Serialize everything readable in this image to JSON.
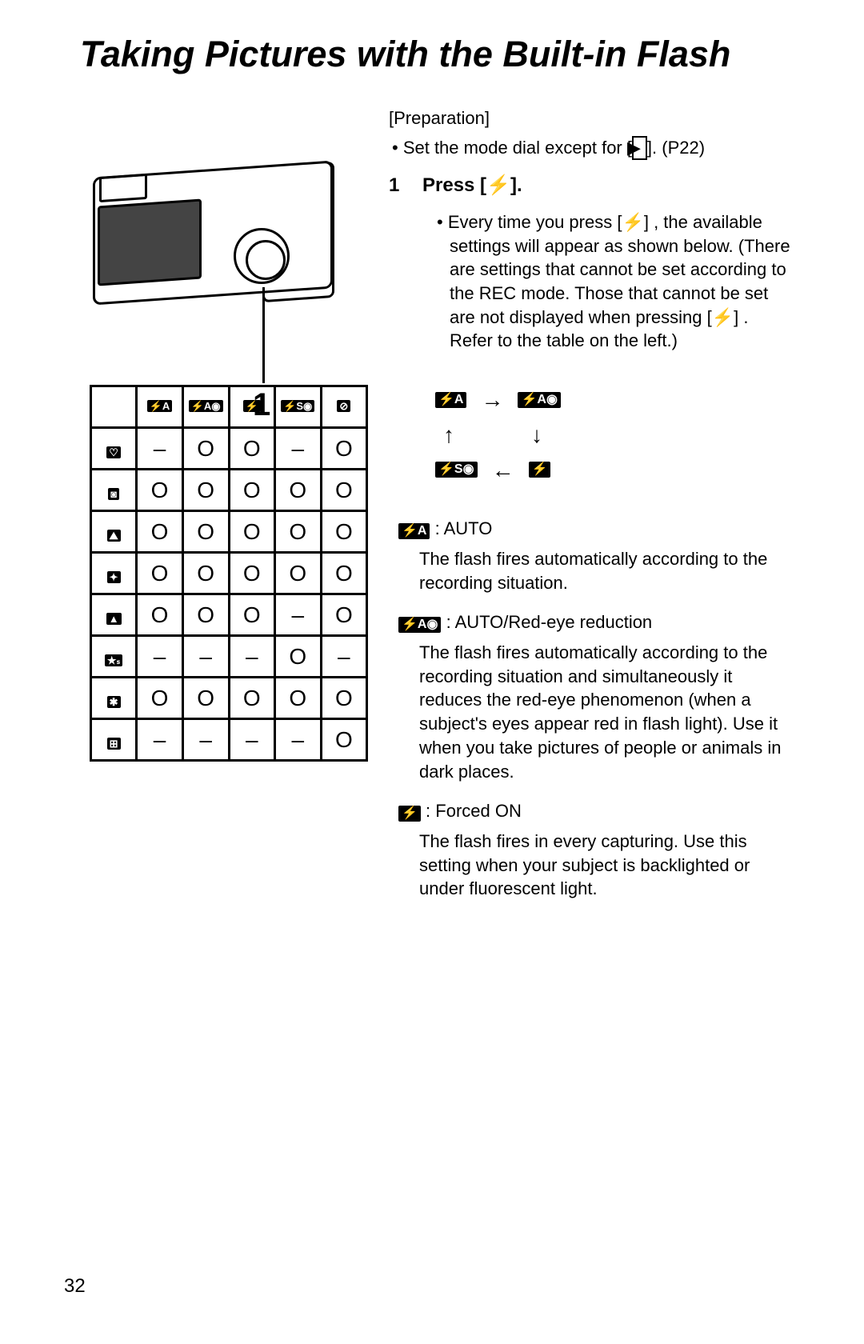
{
  "title": "Taking Pictures with the Built-in Flash",
  "page_number": "32",
  "preparation": {
    "label": "[Preparation]",
    "line_prefix": "• Set the mode dial except for [",
    "playback_glyph": "▶",
    "line_suffix": "]. (P22)"
  },
  "step": {
    "number": "1",
    "press_prefix": "Press [",
    "flash_glyph": "⚡",
    "press_suffix": "].",
    "bullet_prefix": "• Every time you press [",
    "bullet_mid": "] , the available settings will appear as shown below. (There are settings that cannot be set according to the REC mode. Those that cannot be set are not displayed when pressing [",
    "bullet_suffix": "] . Refer to the table on the left.)"
  },
  "table": {
    "col_labels": [
      "⚡A",
      "⚡A◉",
      "⚡",
      "⚡S◉",
      "⊘"
    ],
    "row_labels": [
      "♡",
      "◙",
      "⛰︎",
      "✦",
      "▲",
      "★ₛ",
      "✱",
      "⊞"
    ],
    "cells": [
      [
        "–",
        "O",
        "O",
        "–",
        "O"
      ],
      [
        "O",
        "O",
        "O",
        "O",
        "O"
      ],
      [
        "O",
        "O",
        "O",
        "O",
        "O"
      ],
      [
        "O",
        "O",
        "O",
        "O",
        "O"
      ],
      [
        "O",
        "O",
        "O",
        "–",
        "O"
      ],
      [
        "–",
        "–",
        "–",
        "O",
        "–"
      ],
      [
        "O",
        "O",
        "O",
        "O",
        "O"
      ],
      [
        "–",
        "–",
        "–",
        "–",
        "O"
      ]
    ]
  },
  "cycle": {
    "a": "⚡A",
    "b": "⚡A◉",
    "c": "⚡S◉",
    "d": "⚡"
  },
  "modes": {
    "auto": {
      "icon": "⚡A",
      "label": ": AUTO",
      "body": "The flash fires automatically according to the recording situation."
    },
    "auto_redeye": {
      "icon": "⚡A◉",
      "label": ": AUTO/Red-eye reduction",
      "body": "The flash fires automatically according to the recording situation and simultaneously it reduces the red-eye phenomenon (when a subject's eyes appear red in flash light). Use it when you take pictures of people or animals in dark places."
    },
    "forced_on": {
      "icon": "⚡",
      "label": ": Forced ON",
      "body": "The flash fires in every capturing. Use this setting when your subject is backlighted or under fluorescent light."
    }
  },
  "callout_num": "1"
}
